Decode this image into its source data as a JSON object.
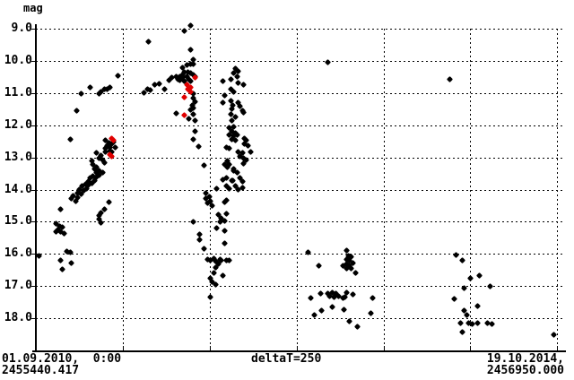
{
  "window": {
    "background": "#ffffff"
  },
  "colors": {
    "points": "#000000",
    "highlight": "#e00000",
    "grid": "#000000",
    "axis": "#000000",
    "text": "#000000"
  },
  "axis_labels": {
    "y_unit": "mag",
    "x_start_date": "01.09.2010,  0:00",
    "x_start_jd": "2455440.417",
    "x_center": "deltaT=250",
    "x_end_date": "19.10.2014,",
    "x_end_jd": "2456950.000"
  },
  "chart_data": {
    "type": "scatter",
    "title": "",
    "xlabel": "",
    "ylabel": "mag",
    "y_inverted": true,
    "y_ticks": [
      9,
      10,
      11,
      12,
      13,
      14,
      15,
      16,
      17,
      18
    ],
    "y_tick_labels": [
      "9.0",
      "10.0",
      "11.0",
      "12.0",
      "13.0",
      "14.0",
      "15.0",
      "16.0",
      "17.0",
      "18.0"
    ],
    "ylim": [
      8.85,
      19.0
    ],
    "x_range_days": [
      0,
      1509.583
    ],
    "x_grid_interval_days": 250,
    "x_gridlines_days": [
      250,
      500,
      750,
      1000,
      1250,
      1500
    ],
    "x_start": {
      "date": "01.09.2010, 0:00",
      "jd": "2455440.417"
    },
    "x_end": {
      "date": "19.10.2014",
      "jd": "2456950.000"
    },
    "grid": "dotted",
    "legend": "none",
    "series": [
      {
        "name": "observations",
        "color": "#000000",
        "points": [
          [
            235,
            10.45
          ],
          [
            155,
            10.81
          ],
          [
            181,
            11.01
          ],
          [
            188,
            10.95
          ],
          [
            196,
            10.89
          ],
          [
            204,
            10.87
          ],
          [
            212,
            10.81
          ],
          [
            129,
            11.03
          ],
          [
            116,
            11.56
          ],
          [
            98,
            12.45
          ],
          [
            70,
            14.6
          ],
          [
            209,
            14.38
          ],
          [
            10,
            16.05
          ],
          [
            103,
            14.29
          ],
          [
            114,
            14.35
          ],
          [
            108,
            14.18
          ],
          [
            119,
            14.24
          ],
          [
            121,
            14.1
          ],
          [
            129,
            14.15
          ],
          [
            126,
            13.99
          ],
          [
            137,
            14.04
          ],
          [
            134,
            13.9
          ],
          [
            145,
            13.96
          ],
          [
            142,
            13.82
          ],
          [
            152,
            13.87
          ],
          [
            150,
            13.74
          ],
          [
            160,
            13.79
          ],
          [
            157,
            13.65
          ],
          [
            168,
            13.71
          ],
          [
            165,
            13.57
          ],
          [
            175,
            13.62
          ],
          [
            173,
            13.48
          ],
          [
            183,
            13.54
          ],
          [
            181,
            13.4
          ],
          [
            191,
            13.46
          ],
          [
            168,
            13.37
          ],
          [
            175,
            12.87
          ],
          [
            186,
            12.93
          ],
          [
            181,
            13.01
          ],
          [
            191,
            13.07
          ],
          [
            165,
            13.21
          ],
          [
            173,
            13.29
          ],
          [
            160,
            13.12
          ],
          [
            201,
            12.48
          ],
          [
            209,
            12.54
          ],
          [
            204,
            12.62
          ],
          [
            214,
            12.68
          ],
          [
            201,
            12.73
          ],
          [
            212,
            12.79
          ],
          [
            219,
            12.84
          ],
          [
            206,
            12.65
          ],
          [
            217,
            12.59
          ],
          [
            224,
            12.51
          ],
          [
            227,
            12.68
          ],
          [
            196,
            13.15
          ],
          [
            199,
            12.82
          ],
          [
            196,
            14.6
          ],
          [
            188,
            14.71
          ],
          [
            183,
            14.82
          ],
          [
            181,
            14.93
          ],
          [
            186,
            15.04
          ],
          [
            57,
            15.07
          ],
          [
            67,
            15.13
          ],
          [
            75,
            15.18
          ],
          [
            62,
            15.24
          ],
          [
            72,
            15.3
          ],
          [
            80,
            15.35
          ],
          [
            59,
            15.32
          ],
          [
            90,
            15.91
          ],
          [
            98,
            15.96
          ],
          [
            72,
            16.21
          ],
          [
            101,
            16.27
          ],
          [
            77,
            16.49
          ],
          [
            444,
            8.89
          ],
          [
            426,
            9.06
          ],
          [
            325,
            9.39
          ],
          [
            444,
            9.64
          ],
          [
            454,
            9.95
          ],
          [
            423,
            10.2
          ],
          [
            434,
            10.14
          ],
          [
            444,
            10.11
          ],
          [
            452,
            10.09
          ],
          [
            413,
            10.48
          ],
          [
            421,
            10.42
          ],
          [
            428,
            10.36
          ],
          [
            436,
            10.34
          ],
          [
            444,
            10.39
          ],
          [
            452,
            10.42
          ],
          [
            459,
            10.48
          ],
          [
            423,
            10.53
          ],
          [
            434,
            10.5
          ],
          [
            441,
            10.56
          ],
          [
            428,
            10.62
          ],
          [
            446,
            10.64
          ],
          [
            415,
            10.59
          ],
          [
            382,
            10.59
          ],
          [
            392,
            10.53
          ],
          [
            403,
            10.48
          ],
          [
            410,
            10.56
          ],
          [
            343,
            10.75
          ],
          [
            354,
            10.7
          ],
          [
            369,
            10.87
          ],
          [
            320,
            10.87
          ],
          [
            330,
            10.92
          ],
          [
            312,
            10.98
          ],
          [
            452,
            11.01
          ],
          [
            452,
            11.17
          ],
          [
            457,
            11.26
          ],
          [
            449,
            11.37
          ],
          [
            454,
            11.45
          ],
          [
            446,
            11.53
          ],
          [
            403,
            11.62
          ],
          [
            454,
            11.67
          ],
          [
            441,
            11.79
          ],
          [
            457,
            11.84
          ],
          [
            457,
            12.18
          ],
          [
            454,
            12.45
          ],
          [
            467,
            12.65
          ],
          [
            573,
            10.23
          ],
          [
            583,
            10.31
          ],
          [
            568,
            10.39
          ],
          [
            560,
            10.56
          ],
          [
            578,
            10.48
          ],
          [
            537,
            10.62
          ],
          [
            581,
            10.67
          ],
          [
            596,
            10.73
          ],
          [
            560,
            10.89
          ],
          [
            570,
            10.95
          ],
          [
            544,
            11.06
          ],
          [
            560,
            11.23
          ],
          [
            539,
            11.31
          ],
          [
            565,
            11.37
          ],
          [
            583,
            11.31
          ],
          [
            588,
            11.4
          ],
          [
            563,
            11.48
          ],
          [
            596,
            11.59
          ],
          [
            594,
            11.56
          ],
          [
            560,
            11.65
          ],
          [
            573,
            11.73
          ],
          [
            563,
            11.84
          ],
          [
            557,
            12.09
          ],
          [
            568,
            12.04
          ],
          [
            563,
            12.18
          ],
          [
            573,
            12.23
          ],
          [
            557,
            12.29
          ],
          [
            568,
            12.34
          ],
          [
            578,
            12.29
          ],
          [
            563,
            12.43
          ],
          [
            573,
            12.48
          ],
          [
            599,
            12.4
          ],
          [
            606,
            12.48
          ],
          [
            601,
            12.57
          ],
          [
            609,
            12.62
          ],
          [
            547,
            12.68
          ],
          [
            555,
            12.73
          ],
          [
            583,
            12.82
          ],
          [
            594,
            12.87
          ],
          [
            588,
            12.96
          ],
          [
            619,
            12.84
          ],
          [
            596,
            13.01
          ],
          [
            604,
            13.09
          ],
          [
            596,
            13.18
          ],
          [
            550,
            13.12
          ],
          [
            557,
            13.21
          ],
          [
            570,
            13.37
          ],
          [
            578,
            13.46
          ],
          [
            542,
            13.21
          ],
          [
            552,
            13.29
          ],
          [
            568,
            13.4
          ],
          [
            547,
            13.65
          ],
          [
            565,
            13.71
          ],
          [
            588,
            13.65
          ],
          [
            594,
            13.76
          ],
          [
            537,
            13.68
          ],
          [
            563,
            13.73
          ],
          [
            547,
            13.9
          ],
          [
            557,
            13.96
          ],
          [
            573,
            13.9
          ],
          [
            594,
            13.93
          ],
          [
            583,
            13.99
          ],
          [
            519,
            13.96
          ],
          [
            485,
            13.26
          ],
          [
            490,
            14.12
          ],
          [
            498,
            14.21
          ],
          [
            488,
            14.29
          ],
          [
            503,
            14.35
          ],
          [
            495,
            14.43
          ],
          [
            508,
            14.49
          ],
          [
            547,
            14.32
          ],
          [
            542,
            14.38
          ],
          [
            547,
            14.74
          ],
          [
            524,
            14.79
          ],
          [
            534,
            14.88
          ],
          [
            542,
            14.96
          ],
          [
            454,
            14.99
          ],
          [
            529,
            14.99
          ],
          [
            519,
            15.21
          ],
          [
            542,
            15.27
          ],
          [
            472,
            15.38
          ],
          [
            470,
            15.55
          ],
          [
            542,
            15.66
          ],
          [
            483,
            15.85
          ],
          [
            511,
            16.13
          ],
          [
            495,
            16.16
          ],
          [
            503,
            16.21
          ],
          [
            516,
            16.24
          ],
          [
            529,
            16.16
          ],
          [
            534,
            16.21
          ],
          [
            524,
            16.32
          ],
          [
            516,
            16.41
          ],
          [
            547,
            16.19
          ],
          [
            557,
            16.21
          ],
          [
            511,
            16.58
          ],
          [
            501,
            16.77
          ],
          [
            539,
            16.66
          ],
          [
            508,
            16.86
          ],
          [
            516,
            16.94
          ],
          [
            501,
            17.33
          ],
          [
            839,
            10.03
          ],
          [
            1192,
            10.56
          ],
          [
            784,
            15.96
          ],
          [
            893,
            15.88
          ],
          [
            898,
            16.05
          ],
          [
            906,
            16.1
          ],
          [
            893,
            16.16
          ],
          [
            903,
            16.21
          ],
          [
            911,
            16.27
          ],
          [
            895,
            16.3
          ],
          [
            903,
            16.38
          ],
          [
            908,
            16.46
          ],
          [
            893,
            16.44
          ],
          [
            883,
            16.38
          ],
          [
            919,
            16.6
          ],
          [
            815,
            16.38
          ],
          [
            792,
            17.36
          ],
          [
            818,
            17.24
          ],
          [
            841,
            17.22
          ],
          [
            852,
            17.19
          ],
          [
            862,
            17.24
          ],
          [
            846,
            17.3
          ],
          [
            857,
            17.33
          ],
          [
            870,
            17.3
          ],
          [
            883,
            17.36
          ],
          [
            890,
            17.33
          ],
          [
            893,
            17.19
          ],
          [
            911,
            17.27
          ],
          [
            970,
            17.36
          ],
          [
            852,
            17.66
          ],
          [
            885,
            17.72
          ],
          [
            823,
            17.77
          ],
          [
            800,
            17.89
          ],
          [
            963,
            17.83
          ],
          [
            901,
            18.08
          ],
          [
            926,
            18.25
          ],
          [
            1208,
            16.02
          ],
          [
            1226,
            16.21
          ],
          [
            1249,
            16.77
          ],
          [
            1275,
            16.66
          ],
          [
            1233,
            17.05
          ],
          [
            1306,
            17.02
          ],
          [
            1203,
            17.41
          ],
          [
            1272,
            17.63
          ],
          [
            1233,
            17.75
          ],
          [
            1239,
            17.89
          ],
          [
            1221,
            18.16
          ],
          [
            1244,
            18.14
          ],
          [
            1254,
            18.19
          ],
          [
            1272,
            18.14
          ],
          [
            1300,
            18.14
          ],
          [
            1311,
            18.19
          ],
          [
            1226,
            18.44
          ],
          [
            1491,
            18.5
          ]
        ]
      },
      {
        "name": "highlighted-observations",
        "color": "#e00000",
        "points": [
          [
            217,
            12.4
          ],
          [
            222,
            12.48
          ],
          [
            212,
            12.9
          ],
          [
            219,
            12.98
          ],
          [
            457,
            10.53
          ],
          [
            434,
            10.75
          ],
          [
            444,
            10.81
          ],
          [
            436,
            10.89
          ],
          [
            446,
            10.95
          ],
          [
            428,
            11.12
          ],
          [
            426,
            11.7
          ]
        ]
      }
    ]
  }
}
